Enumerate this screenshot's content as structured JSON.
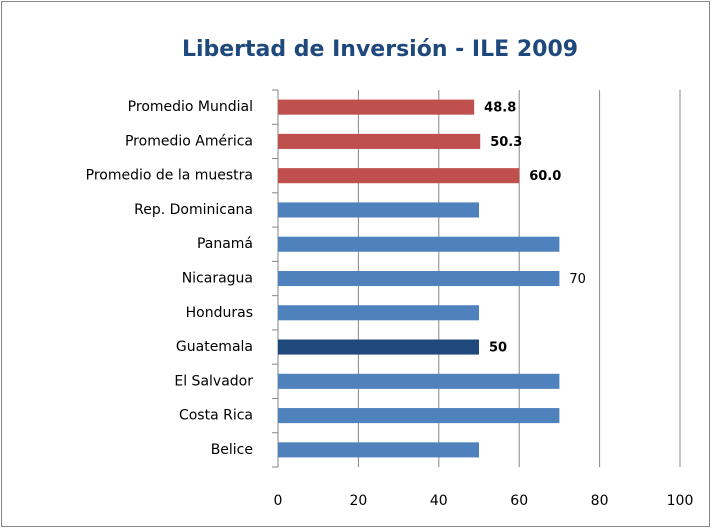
{
  "chart_data": {
    "type": "bar",
    "orientation": "horizontal",
    "title": "Libertad de Inversión - ILE 2009",
    "categories": [
      "Promedio Mundial",
      "Promedio América",
      "Promedio de la muestra",
      "Rep. Dominicana",
      "Panamá",
      "Nicaragua",
      "Honduras",
      "Guatemala",
      "El Salvador",
      "Costa Rica",
      "Belice"
    ],
    "values": [
      48.8,
      50.3,
      60,
      50,
      70,
      70,
      50,
      50,
      70,
      70,
      50
    ],
    "value_labels": [
      "48.8",
      "50.3",
      "60.0",
      null,
      null,
      "70",
      null,
      "50",
      null,
      null,
      null
    ],
    "color": "#4f81bd",
    "colors": [
      "#c0504d",
      "#c0504d",
      "#c0504d",
      "#4f81bd",
      "#4f81bd",
      "#4f81bd",
      "#4f81bd",
      "#1f497d",
      "#4f81bd",
      "#4f81bd",
      "#4f81bd"
    ],
    "xlim": [
      0,
      100
    ],
    "xticks": [
      0,
      20,
      40,
      60,
      80,
      100
    ],
    "grid": true
  }
}
